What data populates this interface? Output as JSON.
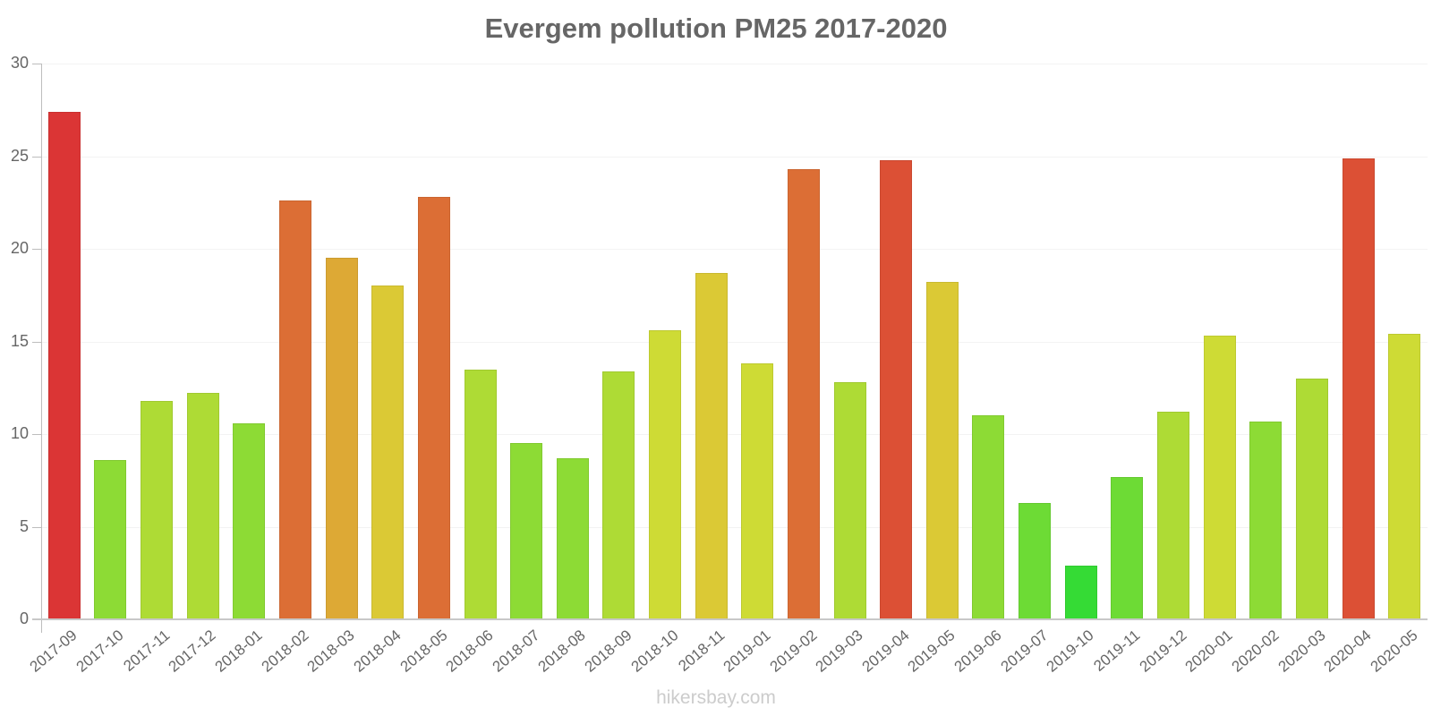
{
  "chart_data": {
    "type": "bar",
    "title": "Evergem pollution PM25 2017-2020",
    "xlabel": "",
    "ylabel": "",
    "ylim": [
      0,
      30
    ],
    "yticks": [
      0,
      5,
      10,
      15,
      20,
      25,
      30
    ],
    "grid": true,
    "legend": null,
    "categories": [
      "2017-09",
      "2017-10",
      "2017-11",
      "2017-12",
      "2018-01",
      "2018-02",
      "2018-03",
      "2018-04",
      "2018-05",
      "2018-06",
      "2018-07",
      "2018-08",
      "2018-09",
      "2018-10",
      "2018-11",
      "2019-01",
      "2019-02",
      "2019-03",
      "2019-04",
      "2019-05",
      "2019-06",
      "2019-07",
      "2019-10",
      "2019-11",
      "2019-12",
      "2020-01",
      "2020-02",
      "2020-03",
      "2020-04",
      "2020-05"
    ],
    "values": [
      27.4,
      8.6,
      11.8,
      12.2,
      10.6,
      22.6,
      19.5,
      18.0,
      22.8,
      13.5,
      9.5,
      8.7,
      13.4,
      15.6,
      18.7,
      13.8,
      24.3,
      12.8,
      24.8,
      18.2,
      11.0,
      6.3,
      2.9,
      7.7,
      11.2,
      15.3,
      10.7,
      13.0,
      24.9,
      15.4
    ],
    "colors": [
      "#db3535",
      "#8ddb35",
      "#aedb35",
      "#aedb35",
      "#8ddb35",
      "#dc6e35",
      "#dda935",
      "#dbc935",
      "#dc6e35",
      "#aedb35",
      "#8ddb35",
      "#8ddb35",
      "#aedb35",
      "#cedb35",
      "#dbc935",
      "#cedb35",
      "#dc6e35",
      "#aedb35",
      "#dc5035",
      "#dbc935",
      "#8ddb35",
      "#6ddb35",
      "#35db35",
      "#6ddb35",
      "#aedb35",
      "#cedb35",
      "#8ddb35",
      "#aedb35",
      "#dc5035",
      "#cedb35"
    ]
  },
  "watermark": "hikersbay.com"
}
